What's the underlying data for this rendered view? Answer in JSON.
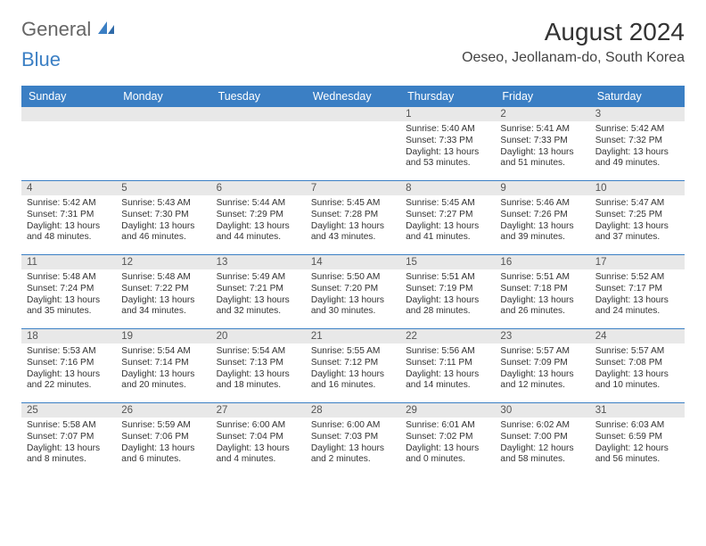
{
  "logo": {
    "text1": "General",
    "text2": "Blue"
  },
  "title": "August 2024",
  "location": "Oeseo, Jeollanam-do, South Korea",
  "colors": {
    "header_bar": "#3b7fc4",
    "day_num_bg": "#e8e8e8",
    "week_divider": "#3b7fc4",
    "text": "#333333"
  },
  "weekdays": [
    "Sunday",
    "Monday",
    "Tuesday",
    "Wednesday",
    "Thursday",
    "Friday",
    "Saturday"
  ],
  "weeks": [
    [
      {
        "num": "",
        "lines": []
      },
      {
        "num": "",
        "lines": []
      },
      {
        "num": "",
        "lines": []
      },
      {
        "num": "",
        "lines": []
      },
      {
        "num": "1",
        "lines": [
          "Sunrise: 5:40 AM",
          "Sunset: 7:33 PM",
          "Daylight: 13 hours and 53 minutes."
        ]
      },
      {
        "num": "2",
        "lines": [
          "Sunrise: 5:41 AM",
          "Sunset: 7:33 PM",
          "Daylight: 13 hours and 51 minutes."
        ]
      },
      {
        "num": "3",
        "lines": [
          "Sunrise: 5:42 AM",
          "Sunset: 7:32 PM",
          "Daylight: 13 hours and 49 minutes."
        ]
      }
    ],
    [
      {
        "num": "4",
        "lines": [
          "Sunrise: 5:42 AM",
          "Sunset: 7:31 PM",
          "Daylight: 13 hours and 48 minutes."
        ]
      },
      {
        "num": "5",
        "lines": [
          "Sunrise: 5:43 AM",
          "Sunset: 7:30 PM",
          "Daylight: 13 hours and 46 minutes."
        ]
      },
      {
        "num": "6",
        "lines": [
          "Sunrise: 5:44 AM",
          "Sunset: 7:29 PM",
          "Daylight: 13 hours and 44 minutes."
        ]
      },
      {
        "num": "7",
        "lines": [
          "Sunrise: 5:45 AM",
          "Sunset: 7:28 PM",
          "Daylight: 13 hours and 43 minutes."
        ]
      },
      {
        "num": "8",
        "lines": [
          "Sunrise: 5:45 AM",
          "Sunset: 7:27 PM",
          "Daylight: 13 hours and 41 minutes."
        ]
      },
      {
        "num": "9",
        "lines": [
          "Sunrise: 5:46 AM",
          "Sunset: 7:26 PM",
          "Daylight: 13 hours and 39 minutes."
        ]
      },
      {
        "num": "10",
        "lines": [
          "Sunrise: 5:47 AM",
          "Sunset: 7:25 PM",
          "Daylight: 13 hours and 37 minutes."
        ]
      }
    ],
    [
      {
        "num": "11",
        "lines": [
          "Sunrise: 5:48 AM",
          "Sunset: 7:24 PM",
          "Daylight: 13 hours and 35 minutes."
        ]
      },
      {
        "num": "12",
        "lines": [
          "Sunrise: 5:48 AM",
          "Sunset: 7:22 PM",
          "Daylight: 13 hours and 34 minutes."
        ]
      },
      {
        "num": "13",
        "lines": [
          "Sunrise: 5:49 AM",
          "Sunset: 7:21 PM",
          "Daylight: 13 hours and 32 minutes."
        ]
      },
      {
        "num": "14",
        "lines": [
          "Sunrise: 5:50 AM",
          "Sunset: 7:20 PM",
          "Daylight: 13 hours and 30 minutes."
        ]
      },
      {
        "num": "15",
        "lines": [
          "Sunrise: 5:51 AM",
          "Sunset: 7:19 PM",
          "Daylight: 13 hours and 28 minutes."
        ]
      },
      {
        "num": "16",
        "lines": [
          "Sunrise: 5:51 AM",
          "Sunset: 7:18 PM",
          "Daylight: 13 hours and 26 minutes."
        ]
      },
      {
        "num": "17",
        "lines": [
          "Sunrise: 5:52 AM",
          "Sunset: 7:17 PM",
          "Daylight: 13 hours and 24 minutes."
        ]
      }
    ],
    [
      {
        "num": "18",
        "lines": [
          "Sunrise: 5:53 AM",
          "Sunset: 7:16 PM",
          "Daylight: 13 hours and 22 minutes."
        ]
      },
      {
        "num": "19",
        "lines": [
          "Sunrise: 5:54 AM",
          "Sunset: 7:14 PM",
          "Daylight: 13 hours and 20 minutes."
        ]
      },
      {
        "num": "20",
        "lines": [
          "Sunrise: 5:54 AM",
          "Sunset: 7:13 PM",
          "Daylight: 13 hours and 18 minutes."
        ]
      },
      {
        "num": "21",
        "lines": [
          "Sunrise: 5:55 AM",
          "Sunset: 7:12 PM",
          "Daylight: 13 hours and 16 minutes."
        ]
      },
      {
        "num": "22",
        "lines": [
          "Sunrise: 5:56 AM",
          "Sunset: 7:11 PM",
          "Daylight: 13 hours and 14 minutes."
        ]
      },
      {
        "num": "23",
        "lines": [
          "Sunrise: 5:57 AM",
          "Sunset: 7:09 PM",
          "Daylight: 13 hours and 12 minutes."
        ]
      },
      {
        "num": "24",
        "lines": [
          "Sunrise: 5:57 AM",
          "Sunset: 7:08 PM",
          "Daylight: 13 hours and 10 minutes."
        ]
      }
    ],
    [
      {
        "num": "25",
        "lines": [
          "Sunrise: 5:58 AM",
          "Sunset: 7:07 PM",
          "Daylight: 13 hours and 8 minutes."
        ]
      },
      {
        "num": "26",
        "lines": [
          "Sunrise: 5:59 AM",
          "Sunset: 7:06 PM",
          "Daylight: 13 hours and 6 minutes."
        ]
      },
      {
        "num": "27",
        "lines": [
          "Sunrise: 6:00 AM",
          "Sunset: 7:04 PM",
          "Daylight: 13 hours and 4 minutes."
        ]
      },
      {
        "num": "28",
        "lines": [
          "Sunrise: 6:00 AM",
          "Sunset: 7:03 PM",
          "Daylight: 13 hours and 2 minutes."
        ]
      },
      {
        "num": "29",
        "lines": [
          "Sunrise: 6:01 AM",
          "Sunset: 7:02 PM",
          "Daylight: 13 hours and 0 minutes."
        ]
      },
      {
        "num": "30",
        "lines": [
          "Sunrise: 6:02 AM",
          "Sunset: 7:00 PM",
          "Daylight: 12 hours and 58 minutes."
        ]
      },
      {
        "num": "31",
        "lines": [
          "Sunrise: 6:03 AM",
          "Sunset: 6:59 PM",
          "Daylight: 12 hours and 56 minutes."
        ]
      }
    ]
  ]
}
